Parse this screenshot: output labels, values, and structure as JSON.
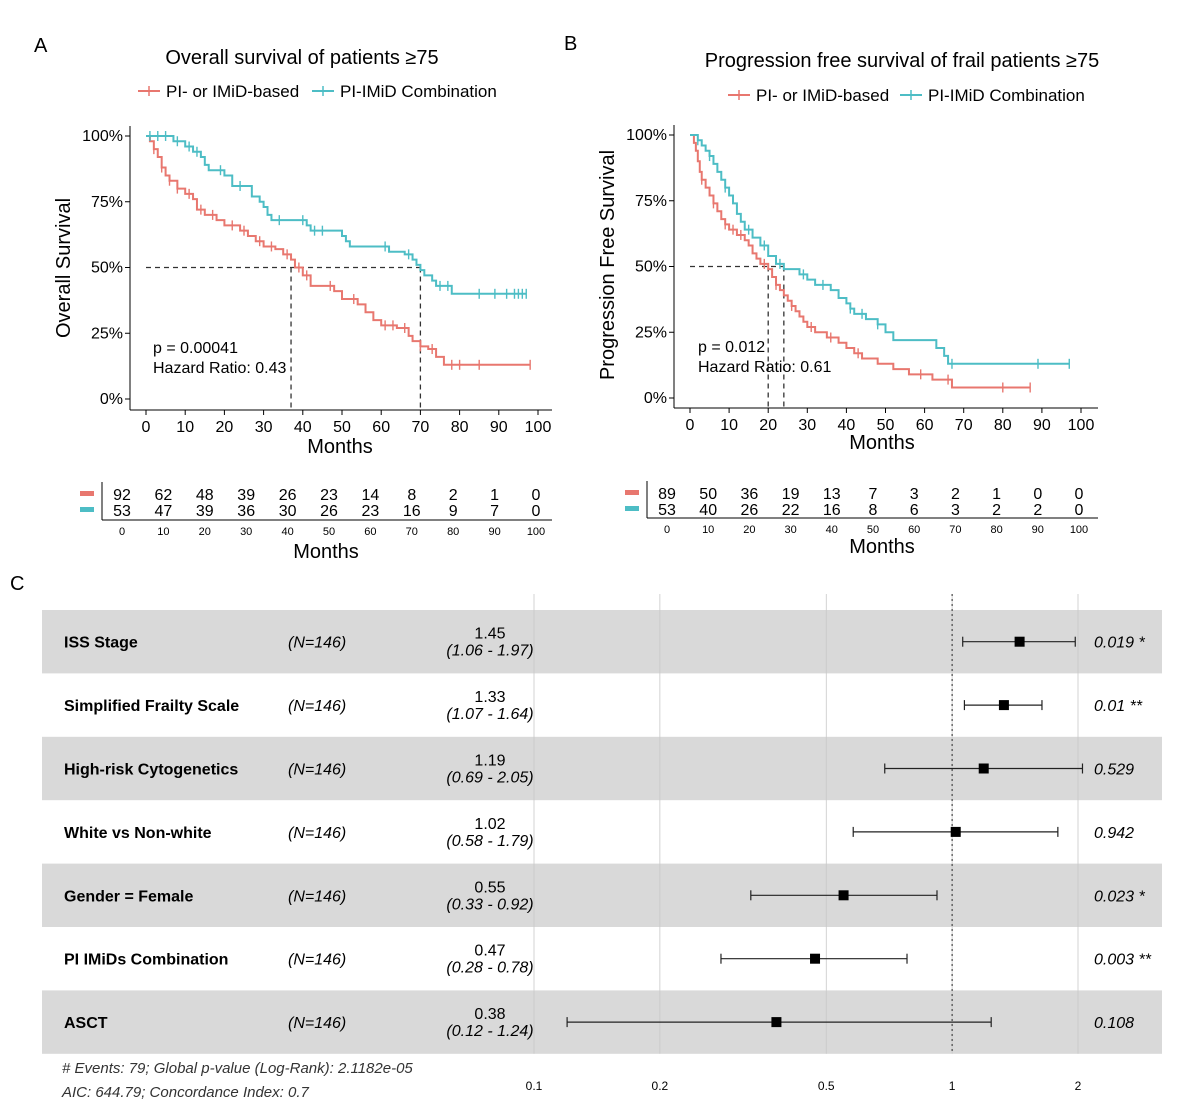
{
  "colors": {
    "pi_imid_based": "#E8776F",
    "combination": "#4DBDC5",
    "stripe": "#D9D9D9",
    "ink": "#111111",
    "median": "#333333"
  },
  "chart_data": [
    {
      "id": "A",
      "type": "line",
      "panel_label": "A",
      "title": "Overall survival of patients ≥75",
      "xlabel": "Months",
      "ylabel": "Overall Survival",
      "xlim": [
        0,
        100
      ],
      "ylim": [
        0,
        1
      ],
      "x_ticks": [
        "0",
        "10",
        "20",
        "30",
        "40",
        "50",
        "60",
        "70",
        "80",
        "90",
        "100"
      ],
      "y_ticks": [
        "0%",
        "25%",
        "50%",
        "75%",
        "100%"
      ],
      "legend_position": "top",
      "series": [
        {
          "name": "PI- or IMiD-based",
          "color_key": "pi_imid_based",
          "points": [
            [
              0,
              1.0
            ],
            [
              1,
              0.98
            ],
            [
              2,
              0.95
            ],
            [
              3,
              0.92
            ],
            [
              4,
              0.88
            ],
            [
              5,
              0.85
            ],
            [
              6,
              0.83
            ],
            [
              8,
              0.8
            ],
            [
              10,
              0.78
            ],
            [
              12,
              0.76
            ],
            [
              13,
              0.72
            ],
            [
              15,
              0.7
            ],
            [
              18,
              0.68
            ],
            [
              20,
              0.66
            ],
            [
              24,
              0.64
            ],
            [
              26,
              0.62
            ],
            [
              28,
              0.6
            ],
            [
              30,
              0.58
            ],
            [
              33,
              0.57
            ],
            [
              35,
              0.55
            ],
            [
              37,
              0.53
            ],
            [
              38,
              0.5
            ],
            [
              40,
              0.47
            ],
            [
              42,
              0.43
            ],
            [
              48,
              0.41
            ],
            [
              50,
              0.38
            ],
            [
              54,
              0.36
            ],
            [
              56,
              0.33
            ],
            [
              58,
              0.3
            ],
            [
              60,
              0.28
            ],
            [
              64,
              0.27
            ],
            [
              67,
              0.24
            ],
            [
              68,
              0.22
            ],
            [
              70,
              0.2
            ],
            [
              72,
              0.19
            ],
            [
              74,
              0.16
            ],
            [
              76,
              0.13
            ],
            [
              98,
              0.13
            ]
          ],
          "censor_x": [
            2,
            4,
            6,
            8,
            11,
            14,
            17,
            22,
            25,
            29,
            32,
            36,
            39,
            41,
            47,
            53,
            61,
            63,
            66,
            70,
            73,
            78,
            80,
            85,
            98
          ]
        },
        {
          "name": "PI-IMiD Combination",
          "color_key": "combination",
          "points": [
            [
              0,
              1.0
            ],
            [
              7,
              0.98
            ],
            [
              10,
              0.96
            ],
            [
              12,
              0.94
            ],
            [
              14,
              0.92
            ],
            [
              15,
              0.89
            ],
            [
              16,
              0.87
            ],
            [
              20,
              0.85
            ],
            [
              22,
              0.81
            ],
            [
              27,
              0.77
            ],
            [
              29,
              0.75
            ],
            [
              30,
              0.73
            ],
            [
              31,
              0.7
            ],
            [
              32,
              0.68
            ],
            [
              41,
              0.66
            ],
            [
              42,
              0.64
            ],
            [
              50,
              0.62
            ],
            [
              51,
              0.6
            ],
            [
              52,
              0.58
            ],
            [
              62,
              0.56
            ],
            [
              66,
              0.55
            ],
            [
              68,
              0.53
            ],
            [
              69,
              0.51
            ],
            [
              70,
              0.49
            ],
            [
              71,
              0.47
            ],
            [
              73,
              0.45
            ],
            [
              74,
              0.43
            ],
            [
              76,
              0.43
            ],
            [
              78,
              0.4
            ],
            [
              97,
              0.4
            ]
          ],
          "censor_x": [
            1,
            3,
            5,
            8,
            11,
            13,
            19,
            24,
            34,
            40,
            43,
            45,
            61,
            67,
            75,
            77,
            85,
            89,
            92,
            94,
            95,
            96,
            97
          ]
        }
      ],
      "median_lines_x": [
        37,
        70
      ],
      "annotations": [
        "p = 0.00041",
        "Hazard Ratio: 0.43"
      ],
      "risk_table": {
        "xlabel": "Months",
        "x_ticks": [
          "0",
          "10",
          "20",
          "30",
          "40",
          "50",
          "60",
          "70",
          "80",
          "90",
          "100"
        ],
        "rows": [
          {
            "color_key": "pi_imid_based",
            "values": [
              "92",
              "62",
              "48",
              "39",
              "26",
              "23",
              "14",
              "8",
              "2",
              "1",
              "0"
            ]
          },
          {
            "color_key": "combination",
            "values": [
              "53",
              "47",
              "39",
              "36",
              "30",
              "26",
              "23",
              "16",
              "9",
              "7",
              "0"
            ]
          }
        ]
      }
    },
    {
      "id": "B",
      "type": "line",
      "panel_label": "B",
      "title": "Progression free survival of frail patients ≥75",
      "xlabel": "Months",
      "ylabel": "Progression Free Survival",
      "xlim": [
        0,
        100
      ],
      "ylim": [
        0,
        1
      ],
      "x_ticks": [
        "0",
        "10",
        "20",
        "30",
        "40",
        "50",
        "60",
        "70",
        "80",
        "90",
        "100"
      ],
      "y_ticks": [
        "0%",
        "25%",
        "50%",
        "75%",
        "100%"
      ],
      "legend_position": "top",
      "series": [
        {
          "name": "PI- or IMiD-based",
          "color_key": "pi_imid_based",
          "points": [
            [
              0,
              1.0
            ],
            [
              1,
              0.97
            ],
            [
              1.5,
              0.94
            ],
            [
              2,
              0.9
            ],
            [
              2.5,
              0.86
            ],
            [
              3,
              0.83
            ],
            [
              4,
              0.8
            ],
            [
              5,
              0.77
            ],
            [
              6,
              0.74
            ],
            [
              7,
              0.71
            ],
            [
              8,
              0.68
            ],
            [
              9,
              0.66
            ],
            [
              10,
              0.64
            ],
            [
              12,
              0.62
            ],
            [
              14,
              0.6
            ],
            [
              15,
              0.58
            ],
            [
              16,
              0.55
            ],
            [
              17,
              0.53
            ],
            [
              18,
              0.51
            ],
            [
              20,
              0.49
            ],
            [
              21,
              0.46
            ],
            [
              22,
              0.43
            ],
            [
              23,
              0.41
            ],
            [
              24,
              0.39
            ],
            [
              25,
              0.37
            ],
            [
              26,
              0.35
            ],
            [
              27,
              0.33
            ],
            [
              28,
              0.31
            ],
            [
              29,
              0.29
            ],
            [
              30,
              0.27
            ],
            [
              32,
              0.25
            ],
            [
              35,
              0.23
            ],
            [
              38,
              0.21
            ],
            [
              40,
              0.19
            ],
            [
              42,
              0.17
            ],
            [
              44,
              0.15
            ],
            [
              48,
              0.13
            ],
            [
              52,
              0.11
            ],
            [
              56,
              0.09
            ],
            [
              62,
              0.07
            ],
            [
              67,
              0.04
            ],
            [
              87,
              0.04
            ]
          ],
          "censor_x": [
            3,
            6,
            9,
            11,
            13,
            19,
            22,
            26,
            31,
            36,
            43,
            59,
            66,
            80,
            87
          ]
        },
        {
          "name": "PI-IMiD Combination",
          "color_key": "combination",
          "points": [
            [
              0,
              1.0
            ],
            [
              2,
              0.98
            ],
            [
              3,
              0.96
            ],
            [
              4,
              0.94
            ],
            [
              5,
              0.92
            ],
            [
              6,
              0.89
            ],
            [
              7,
              0.86
            ],
            [
              8,
              0.83
            ],
            [
              9,
              0.8
            ],
            [
              10,
              0.77
            ],
            [
              11,
              0.74
            ],
            [
              12,
              0.7
            ],
            [
              13,
              0.67
            ],
            [
              14,
              0.64
            ],
            [
              16,
              0.61
            ],
            [
              18,
              0.58
            ],
            [
              20,
              0.54
            ],
            [
              22,
              0.51
            ],
            [
              24,
              0.49
            ],
            [
              28,
              0.47
            ],
            [
              30,
              0.45
            ],
            [
              32,
              0.43
            ],
            [
              36,
              0.41
            ],
            [
              38,
              0.38
            ],
            [
              40,
              0.36
            ],
            [
              41,
              0.34
            ],
            [
              42,
              0.32
            ],
            [
              45,
              0.3
            ],
            [
              48,
              0.28
            ],
            [
              50,
              0.25
            ],
            [
              52,
              0.22
            ],
            [
              63,
              0.19
            ],
            [
              65,
              0.16
            ],
            [
              66,
              0.13
            ],
            [
              97,
              0.13
            ]
          ],
          "censor_x": [
            2,
            5,
            9,
            15,
            19,
            23,
            29,
            34,
            41,
            44,
            48,
            67,
            89,
            97
          ]
        }
      ],
      "median_lines_x": [
        20,
        24
      ],
      "annotations": [
        "p = 0.012",
        "Hazard Ratio: 0.61"
      ],
      "risk_table": {
        "xlabel": "Months",
        "x_ticks": [
          "0",
          "10",
          "20",
          "30",
          "40",
          "50",
          "60",
          "70",
          "80",
          "90",
          "100"
        ],
        "rows": [
          {
            "color_key": "pi_imid_based",
            "values": [
              "89",
              "50",
              "36",
              "19",
              "13",
              "7",
              "3",
              "2",
              "1",
              "0",
              "0"
            ]
          },
          {
            "color_key": "combination",
            "values": [
              "53",
              "40",
              "26",
              "22",
              "16",
              "8",
              "6",
              "3",
              "2",
              "2",
              "0"
            ]
          }
        ]
      }
    },
    {
      "id": "C",
      "type": "forest",
      "panel_label": "C",
      "x_scale": "log",
      "x_ticks": [
        {
          "value": 0.1,
          "label": "0.1"
        },
        {
          "value": 0.2,
          "label": "0.2"
        },
        {
          "value": 0.5,
          "label": "0.5"
        },
        {
          "value": 1,
          "label": "1"
        },
        {
          "value": 2,
          "label": "2"
        }
      ],
      "reference_line": 1,
      "rows": [
        {
          "variable": "ISS Stage",
          "n": "(N=146)",
          "hr": 1.45,
          "low": 1.06,
          "high": 1.97,
          "hr_label": "1.45",
          "ci_label": "(1.06 - 1.97)",
          "p": "0.019 *",
          "shaded": true
        },
        {
          "variable": "Simplified Frailty Scale",
          "n": "(N=146)",
          "hr": 1.33,
          "low": 1.07,
          "high": 1.64,
          "hr_label": "1.33",
          "ci_label": "(1.07 - 1.64)",
          "p": "0.01 **",
          "shaded": false
        },
        {
          "variable": "High-risk Cytogenetics",
          "n": "(N=146)",
          "hr": 1.19,
          "low": 0.69,
          "high": 2.05,
          "hr_label": "1.19",
          "ci_label": "(0.69 - 2.05)",
          "p": "0.529",
          "shaded": true
        },
        {
          "variable": "White vs Non-white",
          "n": "(N=146)",
          "hr": 1.02,
          "low": 0.58,
          "high": 1.79,
          "hr_label": "1.02",
          "ci_label": "(0.58 - 1.79)",
          "p": "0.942",
          "shaded": false
        },
        {
          "variable": "Gender = Female",
          "n": "(N=146)",
          "hr": 0.55,
          "low": 0.33,
          "high": 0.92,
          "hr_label": "0.55",
          "ci_label": "(0.33 - 0.92)",
          "p": "0.023 *",
          "shaded": true
        },
        {
          "variable": "PI IMiDs Combination",
          "n": "(N=146)",
          "hr": 0.47,
          "low": 0.28,
          "high": 0.78,
          "hr_label": "0.47",
          "ci_label": "(0.28 - 0.78)",
          "p": "0.003 **",
          "shaded": false
        },
        {
          "variable": "ASCT",
          "n": "(N=146)",
          "hr": 0.38,
          "low": 0.12,
          "high": 1.24,
          "hr_label": "0.38",
          "ci_label": "(0.12 - 1.24)",
          "p": "0.108",
          "shaded": true
        }
      ],
      "footer": [
        "# Events: 79; Global p-value (Log-Rank): 2.1182e-05",
        "AIC: 644.79; Concordance Index: 0.7"
      ]
    }
  ]
}
